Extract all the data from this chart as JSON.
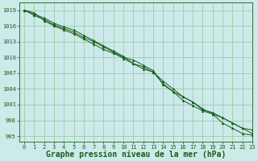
{
  "title": "Graphe pression niveau de la mer (hPa)",
  "background_color": "#cceaea",
  "grid_color": "#88bb88",
  "line_color": "#1a5c1a",
  "marker": "^",
  "xlim": [
    -0.5,
    23
  ],
  "ylim": [
    994,
    1020.5
  ],
  "yticks": [
    995,
    998,
    1001,
    1004,
    1007,
    1010,
    1013,
    1016,
    1019
  ],
  "xticks": [
    0,
    1,
    2,
    3,
    4,
    5,
    6,
    7,
    8,
    9,
    10,
    11,
    12,
    13,
    14,
    15,
    16,
    17,
    18,
    19,
    20,
    21,
    22,
    23
  ],
  "series": [
    [
      1019,
      1018,
      1017.2,
      1016.2,
      1015.5,
      1014.8,
      1013.8,
      1013.0,
      1012.0,
      1011.0,
      1010.0,
      1009.5,
      1008.5,
      1007.5,
      1004.8,
      1003.5,
      1002.5,
      1001.5,
      1000.2,
      999.2,
      998.5,
      997.5,
      996.5,
      995.5
    ],
    [
      1019,
      1018.2,
      1017.5,
      1016.5,
      1015.8,
      1015.2,
      1014.2,
      1013.2,
      1012.2,
      1011.2,
      1010.2,
      1008.8,
      1008.2,
      1007.2,
      1005.5,
      1004.0,
      1002.5,
      1001.5,
      1000.0,
      999.5,
      998.5,
      997.5,
      996.5,
      996.2
    ],
    [
      1019,
      1018.5,
      1017.0,
      1016.0,
      1015.2,
      1014.5,
      1013.5,
      1012.5,
      1011.5,
      1010.8,
      1009.8,
      1008.8,
      1007.8,
      1007.2,
      1005.0,
      1003.5,
      1001.8,
      1000.8,
      999.8,
      999.2,
      997.5,
      996.5,
      995.5,
      995.2
    ]
  ],
  "title_fontsize": 7,
  "tick_fontsize": 5,
  "tick_color": "#1a5c1a",
  "spine_color": "#1a5c1a",
  "label_color": "#1a5c1a"
}
